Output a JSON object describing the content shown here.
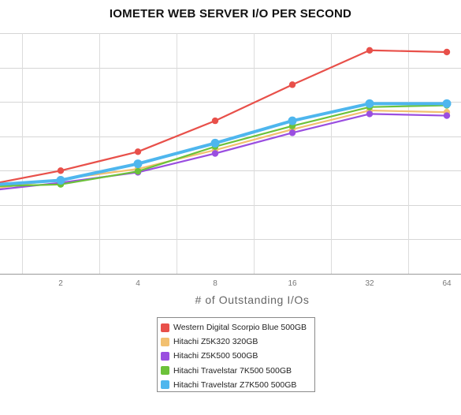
{
  "chart_data": {
    "type": "line",
    "title": "IOMETER WEB SERVER I/O PER SECOND",
    "xlabel": "# of Outstanding I/Os",
    "ylabel": "",
    "x": [
      1,
      2,
      4,
      8,
      16,
      32,
      64
    ],
    "x_tick_labels": [
      "2",
      "4",
      "8",
      "16",
      "32",
      "64"
    ],
    "x_ticks": [
      2,
      4,
      8,
      16,
      32,
      64
    ],
    "x_scale": "log2",
    "xlim": [
      1,
      90
    ],
    "y_tick_labels": [],
    "ylim": [
      0,
      7
    ],
    "grid": true,
    "legend": "bottom-center",
    "series": [
      {
        "name": "Western Digital Scorpio Blue 500GB",
        "color": "#e8504a",
        "values": [
          2.65,
          3.0,
          3.55,
          4.45,
          5.5,
          6.5,
          6.45
        ]
      },
      {
        "name": "Hitachi Z5K320 320GB",
        "color": "#f2c070",
        "values": [
          2.5,
          2.75,
          3.05,
          3.6,
          4.2,
          4.75,
          4.7
        ]
      },
      {
        "name": "Hitachi Z5K500 500GB",
        "color": "#9a4ee0",
        "values": [
          2.45,
          2.65,
          2.95,
          3.5,
          4.1,
          4.65,
          4.6
        ]
      },
      {
        "name": "Hitachi Travelstar 7K500 500GB",
        "color": "#6cc23a",
        "values": [
          2.55,
          2.6,
          2.98,
          3.7,
          4.3,
          4.85,
          4.9
        ]
      },
      {
        "name": "Hitachi Travelstar Z7K500 500GB",
        "color": "#4eb6ee",
        "values": [
          2.6,
          2.72,
          3.2,
          3.8,
          4.45,
          4.95,
          4.95
        ]
      }
    ]
  }
}
